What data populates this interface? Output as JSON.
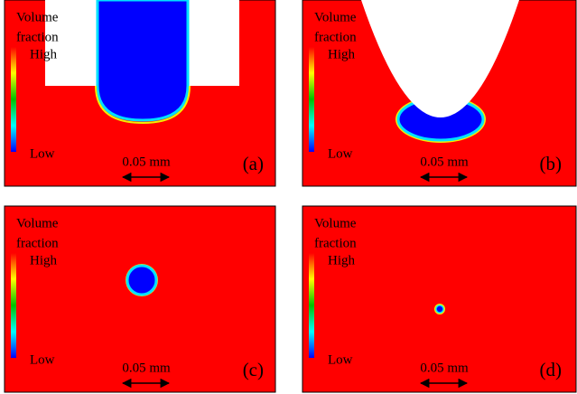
{
  "panels": [
    {
      "legend": [
        "Volume",
        "fraction"
      ],
      "high": "High",
      "low": "Low",
      "scale": "0.05 mm",
      "label": "(a)"
    },
    {
      "legend": [
        "Volume",
        "fraction"
      ],
      "high": "High",
      "low": "Low",
      "scale": "0.05 mm",
      "label": "(b)"
    },
    {
      "legend": [
        "Volume",
        "fraction"
      ],
      "high": "High",
      "low": "Low",
      "scale": "0.05 mm",
      "label": "(c)"
    },
    {
      "legend": [
        "Volume",
        "fraction"
      ],
      "high": "High",
      "low": "Low",
      "scale": "0.05 mm",
      "label": "(d)"
    }
  ]
}
